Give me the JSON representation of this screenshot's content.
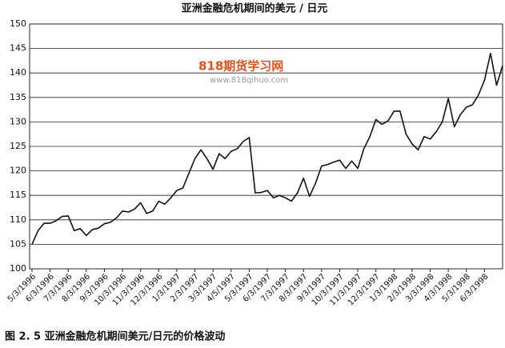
{
  "chart_data": {
    "type": "line",
    "title": "亚洲金融危机期间的美元 / 日元",
    "caption": "图 2. 5   亚洲金融危机期间美元/日元的价格波动",
    "watermark": "818期货学习网",
    "watermark_url": "www.818qihuo.com",
    "categories": [
      "5/3/1996",
      null,
      null,
      "6/3/1996",
      null,
      null,
      "7/3/1996",
      null,
      null,
      "8/3/1996",
      null,
      null,
      "9/3/1996",
      null,
      null,
      "10/3/1996",
      null,
      null,
      "11/3/1996",
      null,
      null,
      "12/3/1996",
      null,
      null,
      "1/3/1997",
      null,
      null,
      "2/3/1997",
      null,
      null,
      "3/3/1997",
      null,
      null,
      "4/5/1997",
      null,
      null,
      "5/3/1997",
      null,
      null,
      "6/3/1997",
      null,
      null,
      "7/3/1997",
      null,
      null,
      "8/3/1997",
      null,
      null,
      "9/3/1997",
      null,
      null,
      "10/3/1997",
      null,
      null,
      "11/3/1997",
      null,
      null,
      "12/3/1997",
      null,
      null,
      "1/3/1998",
      null,
      null,
      "2/3/1998",
      null,
      null,
      "3/3/1998",
      null,
      null,
      "4/3/1998",
      null,
      null,
      "5/3/1998",
      null,
      null,
      "6/3/1998",
      null,
      null,
      null
    ],
    "values": [
      105,
      107.8,
      109.3,
      109.3,
      109.8,
      110.7,
      110.8,
      107.8,
      108.2,
      106.8,
      108,
      108.3,
      109.2,
      109.5,
      110.4,
      111.8,
      111.6,
      112.2,
      113.5,
      111.3,
      111.8,
      113.8,
      113.2,
      114.5,
      116,
      116.5,
      119.5,
      122.5,
      124.3,
      122.5,
      120.3,
      123.5,
      122.5,
      124,
      124.5,
      126,
      126.8,
      115.5,
      115.6,
      116,
      114.5,
      115,
      114.5,
      113.8,
      115.5,
      118.5,
      114.8,
      117.5,
      121,
      121.3,
      121.8,
      122.2,
      120.5,
      122,
      120.5,
      124.5,
      127,
      130.5,
      129.5,
      130.2,
      132.2,
      132.2,
      127.5,
      125.5,
      124.3,
      127,
      126.5,
      128,
      130,
      134.8,
      129,
      131.5,
      133,
      133.5,
      135.5,
      138.5,
      144,
      137.5,
      141.5
    ],
    "color": "#111111",
    "ylim": [
      100,
      150
    ],
    "yticks": [
      100,
      105,
      110,
      115,
      120,
      125,
      130,
      135,
      140,
      145,
      150
    ],
    "grid": true
  }
}
